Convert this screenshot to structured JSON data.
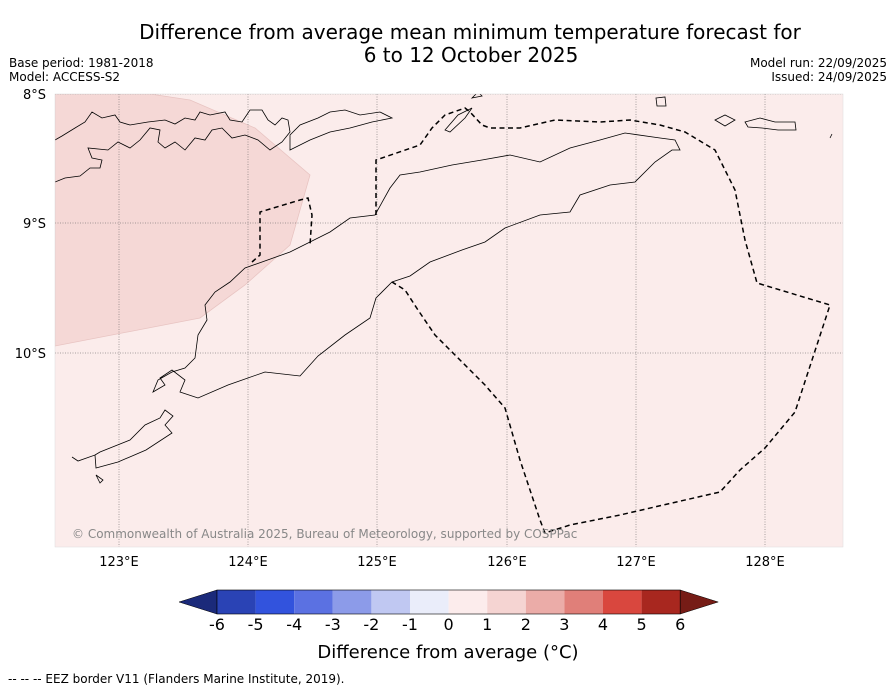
{
  "title": {
    "line1": "Difference from average mean minimum temperature forecast for",
    "line2": "6 to 12 October 2025"
  },
  "meta": {
    "base_period": "Base period: 1981-2018",
    "model": "Model: ACCESS-S2",
    "model_run": "Model run: 22/09/2025",
    "issued": "Issued: 24/09/2025"
  },
  "axes": {
    "lat_labels": [
      "8°S",
      "9°S",
      "10°S"
    ],
    "lon_labels": [
      "123°E",
      "124°E",
      "125°E",
      "126°E",
      "127°E",
      "128°E"
    ]
  },
  "map": {
    "background_color": "#fbeceb",
    "warm_region_color": "#f5d8d6",
    "copyright": "© Commonwealth of Australia 2025, Bureau of Meteorology, supported by COSPPac"
  },
  "colorbar": {
    "ticks": [
      "-6",
      "-5",
      "-4",
      "-3",
      "-2",
      "-1",
      "0",
      "1",
      "2",
      "3",
      "4",
      "5",
      "6"
    ],
    "colors": [
      "#1b2a7a",
      "#2a43b5",
      "#3253dd",
      "#5b71e2",
      "#8c9be9",
      "#c0c8f2",
      "#eaedfa",
      "#fcecec",
      "#f5d4d2",
      "#ebaca8",
      "#e07f79",
      "#d9473e",
      "#a8271f",
      "#761c16"
    ],
    "label": "Difference from average (°C)"
  },
  "legend": {
    "eez": "--  --  -- EEZ border V11 (Flanders Marine Institute, 2019)."
  }
}
